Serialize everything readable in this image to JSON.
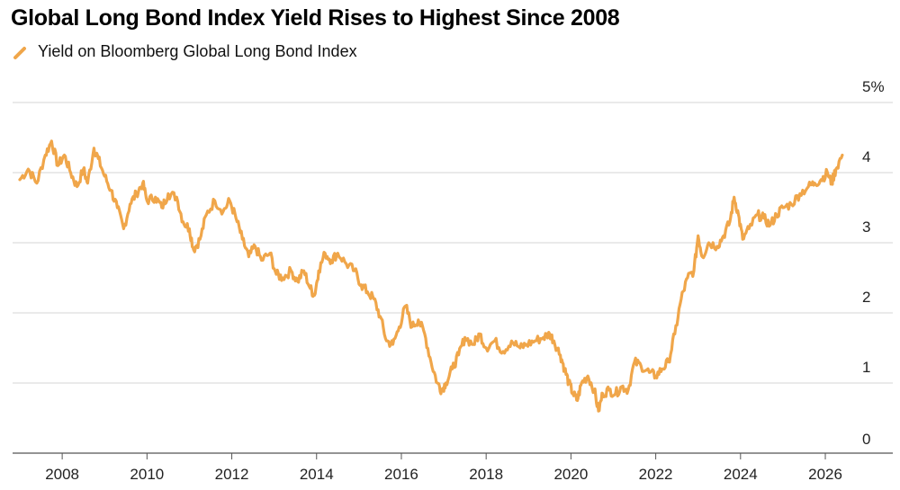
{
  "chart_data": {
    "type": "line",
    "title": "Global Long Bond Index Yield Rises to Highest Since 2008",
    "series": [
      {
        "name": "Yield on Bloomberg Global Long Bond Index",
        "color": "#f0a64a",
        "points": [
          [
            2007.0,
            3.9
          ],
          [
            2007.2,
            4.05
          ],
          [
            2007.4,
            3.85
          ],
          [
            2007.6,
            4.25
          ],
          [
            2007.75,
            4.45
          ],
          [
            2007.9,
            4.1
          ],
          [
            2008.05,
            4.25
          ],
          [
            2008.2,
            4.0
          ],
          [
            2008.35,
            3.8
          ],
          [
            2008.5,
            4.05
          ],
          [
            2008.6,
            3.85
          ],
          [
            2008.75,
            4.35
          ],
          [
            2008.85,
            4.2
          ],
          [
            2009.0,
            3.95
          ],
          [
            2009.15,
            3.75
          ],
          [
            2009.3,
            3.5
          ],
          [
            2009.45,
            3.2
          ],
          [
            2009.6,
            3.55
          ],
          [
            2009.75,
            3.7
          ],
          [
            2009.9,
            3.85
          ],
          [
            2010.0,
            3.6
          ],
          [
            2010.2,
            3.65
          ],
          [
            2010.35,
            3.5
          ],
          [
            2010.5,
            3.7
          ],
          [
            2010.7,
            3.65
          ],
          [
            2010.85,
            3.3
          ],
          [
            2011.0,
            3.2
          ],
          [
            2011.1,
            2.9
          ],
          [
            2011.25,
            3.05
          ],
          [
            2011.4,
            3.4
          ],
          [
            2011.6,
            3.6
          ],
          [
            2011.8,
            3.45
          ],
          [
            2011.95,
            3.6
          ],
          [
            2012.1,
            3.35
          ],
          [
            2012.25,
            3.05
          ],
          [
            2012.4,
            2.8
          ],
          [
            2012.55,
            2.95
          ],
          [
            2012.7,
            2.75
          ],
          [
            2012.9,
            2.85
          ],
          [
            2013.05,
            2.55
          ],
          [
            2013.2,
            2.5
          ],
          [
            2013.4,
            2.6
          ],
          [
            2013.55,
            2.45
          ],
          [
            2013.7,
            2.6
          ],
          [
            2013.85,
            2.35
          ],
          [
            2013.95,
            2.25
          ],
          [
            2014.05,
            2.6
          ],
          [
            2014.2,
            2.85
          ],
          [
            2014.35,
            2.75
          ],
          [
            2014.5,
            2.85
          ],
          [
            2014.7,
            2.7
          ],
          [
            2014.9,
            2.6
          ],
          [
            2015.05,
            2.4
          ],
          [
            2015.2,
            2.3
          ],
          [
            2015.35,
            2.2
          ],
          [
            2015.5,
            1.95
          ],
          [
            2015.65,
            1.6
          ],
          [
            2015.8,
            1.55
          ],
          [
            2015.95,
            1.8
          ],
          [
            2016.1,
            2.1
          ],
          [
            2016.25,
            1.8
          ],
          [
            2016.4,
            1.9
          ],
          [
            2016.55,
            1.7
          ],
          [
            2016.7,
            1.3
          ],
          [
            2016.85,
            1.0
          ],
          [
            2016.95,
            0.9
          ],
          [
            2017.05,
            1.0
          ],
          [
            2017.2,
            1.2
          ],
          [
            2017.35,
            1.4
          ],
          [
            2017.5,
            1.65
          ],
          [
            2017.7,
            1.55
          ],
          [
            2017.85,
            1.7
          ],
          [
            2018.0,
            1.5
          ],
          [
            2018.2,
            1.6
          ],
          [
            2018.4,
            1.45
          ],
          [
            2018.6,
            1.6
          ],
          [
            2018.8,
            1.5
          ],
          [
            2018.95,
            1.55
          ],
          [
            2019.15,
            1.6
          ],
          [
            2019.35,
            1.65
          ],
          [
            2019.5,
            1.7
          ],
          [
            2019.6,
            1.6
          ],
          [
            2019.75,
            1.4
          ],
          [
            2019.85,
            1.2
          ],
          [
            2019.95,
            1.0
          ],
          [
            2020.05,
            0.85
          ],
          [
            2020.15,
            0.75
          ],
          [
            2020.25,
            1.0
          ],
          [
            2020.4,
            1.1
          ],
          [
            2020.55,
            0.9
          ],
          [
            2020.65,
            0.6
          ],
          [
            2020.75,
            0.85
          ],
          [
            2020.9,
            0.9
          ],
          [
            2021.05,
            0.85
          ],
          [
            2021.2,
            0.95
          ],
          [
            2021.35,
            0.9
          ],
          [
            2021.5,
            1.3
          ],
          [
            2021.65,
            1.25
          ],
          [
            2021.85,
            1.15
          ],
          [
            2022.0,
            1.1
          ],
          [
            2022.15,
            1.2
          ],
          [
            2022.3,
            1.3
          ],
          [
            2022.45,
            1.7
          ],
          [
            2022.6,
            2.2
          ],
          [
            2022.75,
            2.5
          ],
          [
            2022.9,
            2.6
          ],
          [
            2023.0,
            3.1
          ],
          [
            2023.1,
            2.8
          ],
          [
            2023.25,
            3.0
          ],
          [
            2023.45,
            2.95
          ],
          [
            2023.6,
            3.1
          ],
          [
            2023.75,
            3.3
          ],
          [
            2023.85,
            3.65
          ],
          [
            2023.95,
            3.4
          ],
          [
            2024.05,
            3.05
          ],
          [
            2024.2,
            3.2
          ],
          [
            2024.4,
            3.4
          ],
          [
            2024.55,
            3.35
          ],
          [
            2024.7,
            3.25
          ],
          [
            2024.85,
            3.4
          ],
          [
            2025.0,
            3.5
          ],
          [
            2025.2,
            3.55
          ],
          [
            2025.4,
            3.7
          ],
          [
            2025.6,
            3.8
          ],
          [
            2025.75,
            3.85
          ],
          [
            2025.9,
            3.9
          ],
          [
            2026.05,
            4.0
          ],
          [
            2026.15,
            3.85
          ],
          [
            2026.25,
            4.05
          ],
          [
            2026.4,
            4.25
          ]
        ]
      }
    ],
    "x_ticks": [
      "2008",
      "2010",
      "2012",
      "2014",
      "2016",
      "2018",
      "2020",
      "2022",
      "2024",
      "2026"
    ],
    "y_ticks": [
      "0",
      "1",
      "2",
      "3",
      "4",
      "5%"
    ],
    "xlim": [
      2006.83,
      2026.7
    ],
    "ylim": [
      0,
      5
    ],
    "grid": "horizontal",
    "legend_position": "top-left"
  }
}
